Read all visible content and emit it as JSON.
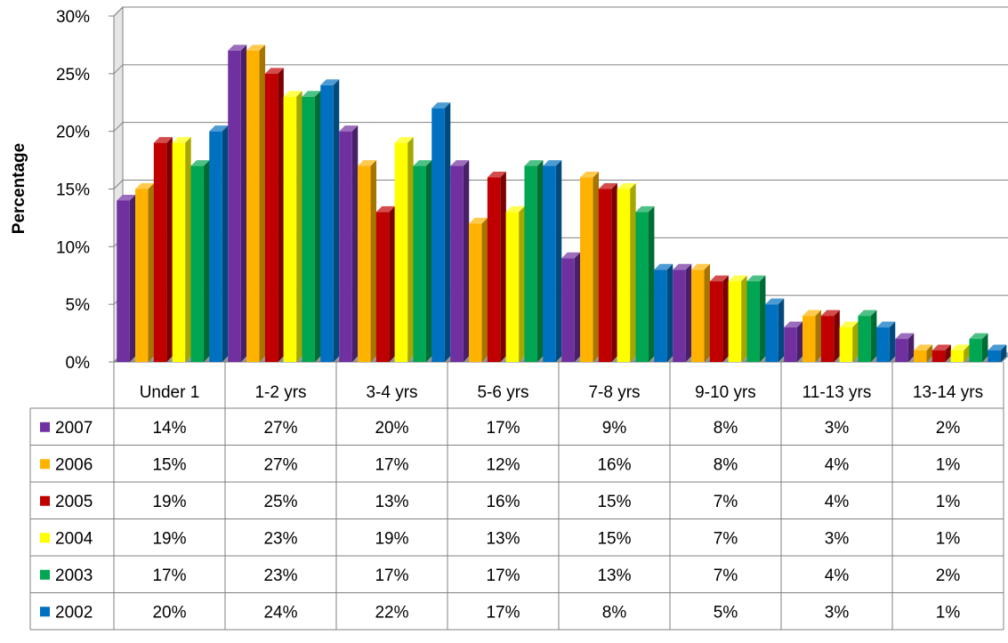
{
  "chart_data": {
    "type": "bar",
    "ylabel": "Percentage",
    "ylim": [
      0,
      30
    ],
    "yticks": [
      "0%",
      "5%",
      "10%",
      "15%",
      "20%",
      "25%",
      "30%"
    ],
    "categories": [
      "Under 1",
      "1-2 yrs",
      "3-4 yrs",
      "5-6 yrs",
      "7-8 yrs",
      "9-10 yrs",
      "11-13 yrs",
      "13-14 yrs"
    ],
    "series": [
      {
        "name": "2007",
        "color": "#7030A0",
        "values": [
          14,
          27,
          20,
          17,
          9,
          8,
          3,
          2
        ],
        "labels": [
          "14%",
          "27%",
          "20%",
          "17%",
          "9%",
          "8%",
          "3%",
          "2%"
        ]
      },
      {
        "name": "2006",
        "color": "#FFB300",
        "values": [
          15,
          27,
          17,
          12,
          16,
          8,
          4,
          1
        ],
        "labels": [
          "15%",
          "27%",
          "17%",
          "12%",
          "16%",
          "8%",
          "4%",
          "1%"
        ]
      },
      {
        "name": "2005",
        "color": "#C00000",
        "values": [
          19,
          25,
          13,
          16,
          15,
          7,
          4,
          1
        ],
        "labels": [
          "19%",
          "25%",
          "13%",
          "16%",
          "15%",
          "7%",
          "4%",
          "1%"
        ]
      },
      {
        "name": "2004",
        "color": "#FFFF00",
        "values": [
          19,
          23,
          19,
          13,
          15,
          7,
          3,
          1
        ],
        "labels": [
          "19%",
          "23%",
          "19%",
          "13%",
          "15%",
          "7%",
          "3%",
          "1%"
        ]
      },
      {
        "name": "2003",
        "color": "#00A651",
        "values": [
          17,
          23,
          17,
          17,
          13,
          7,
          4,
          2
        ],
        "labels": [
          "17%",
          "23%",
          "17%",
          "17%",
          "13%",
          "7%",
          "4%",
          "2%"
        ]
      },
      {
        "name": "2002",
        "color": "#0070C0",
        "values": [
          20,
          24,
          22,
          17,
          8,
          5,
          3,
          1
        ],
        "labels": [
          "20%",
          "24%",
          "22%",
          "17%",
          "8%",
          "5%",
          "3%",
          "1%"
        ]
      }
    ],
    "grid": true,
    "legend": "data-table-left"
  }
}
